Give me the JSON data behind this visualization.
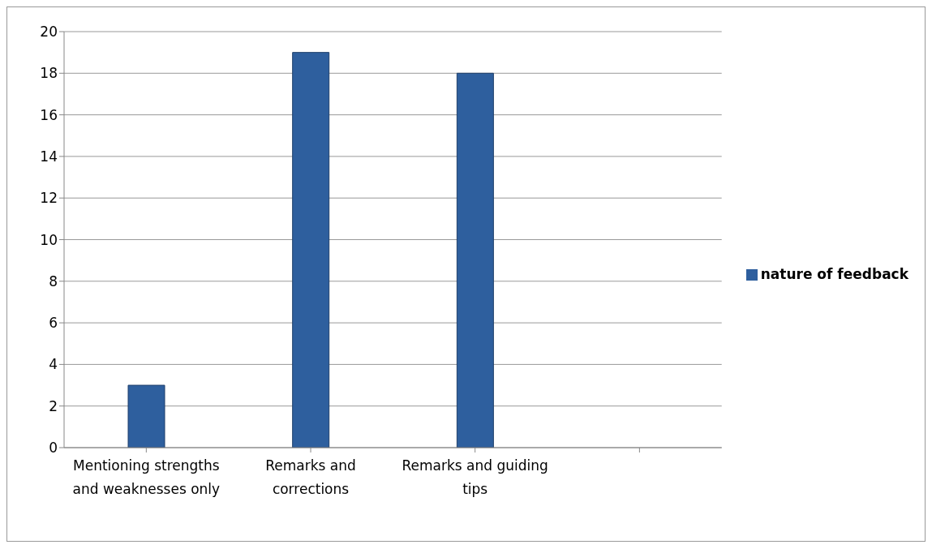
{
  "chart_data": {
    "type": "bar",
    "categories": [
      "Mentioning strengths and weaknesses only",
      "Remarks and corrections",
      "Remarks and guiding tips",
      null
    ],
    "series": [
      {
        "name": "nature of feedback",
        "color": "#2e5f9e",
        "values": [
          3,
          19,
          18,
          null
        ]
      }
    ],
    "ylim": [
      0,
      20
    ],
    "yticks": [
      0,
      2,
      4,
      6,
      8,
      10,
      12,
      14,
      16,
      18,
      20
    ],
    "grid": "y",
    "legend": "right"
  }
}
